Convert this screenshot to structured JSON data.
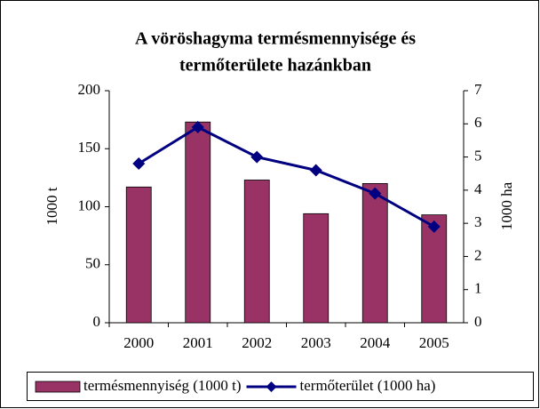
{
  "chart_data": {
    "type": "bar-line",
    "title": [
      "A vöröshagyma termésmennyisége és",
      "termőterülete hazánkban"
    ],
    "ylabel": "1000 t",
    "y2label": "1000 ha",
    "categories": [
      "2000",
      "2001",
      "2002",
      "2003",
      "2004",
      "2005"
    ],
    "series": [
      {
        "name": "termésmennyiség (1000 t)",
        "type": "bar",
        "color": "#993366",
        "values": [
          117,
          173,
          123,
          94,
          120,
          93
        ]
      },
      {
        "name": "termőterület (1000 ha)",
        "type": "line",
        "axis": "y2",
        "color": "#000080",
        "values": [
          4.8,
          5.9,
          5.0,
          4.6,
          3.9,
          2.9
        ]
      }
    ],
    "ylim": [
      0,
      200
    ],
    "yticks": [
      0,
      50,
      100,
      150,
      200
    ],
    "y2lim": [
      0,
      7
    ],
    "y2ticks": [
      0,
      1,
      2,
      3,
      4,
      5,
      6,
      7
    ],
    "legend": "bottom"
  }
}
